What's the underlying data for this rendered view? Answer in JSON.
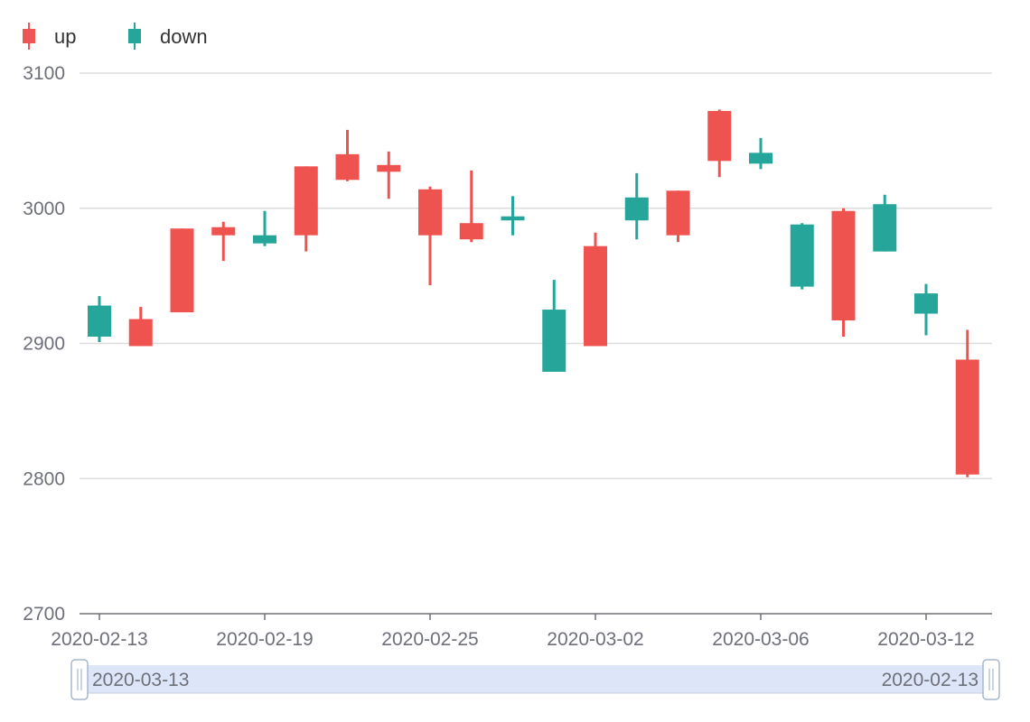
{
  "chart_data": {
    "type": "candlestick",
    "legend": [
      {
        "name": "up",
        "color": "#ee5555"
      },
      {
        "name": "down",
        "color": "#26a69a"
      }
    ],
    "colors": {
      "up": "#ef5350",
      "down": "#26a69a",
      "grid": "#dddddd",
      "axis": "#6e7079"
    },
    "ylim": [
      2700,
      3100
    ],
    "yticks": [
      2700,
      2800,
      2900,
      3000,
      3100
    ],
    "xtick_labels": [
      "2020-02-13",
      "2020-02-19",
      "2020-02-25",
      "2020-03-02",
      "2020-03-06",
      "2020-03-12"
    ],
    "xtick_indices": [
      0,
      4,
      8,
      12,
      16,
      20
    ],
    "candles": [
      {
        "date": "2020-02-13",
        "open": 2928,
        "close": 2905,
        "low": 2901,
        "high": 2935
      },
      {
        "date": "2020-02-14",
        "open": 2898,
        "close": 2918,
        "low": 2898,
        "high": 2927
      },
      {
        "date": "2020-02-17",
        "open": 2923,
        "close": 2985,
        "low": 2923,
        "high": 2985
      },
      {
        "date": "2020-02-18",
        "open": 2980,
        "close": 2986,
        "low": 2961,
        "high": 2990
      },
      {
        "date": "2020-02-19",
        "open": 2980,
        "close": 2974,
        "low": 2972,
        "high": 2998
      },
      {
        "date": "2020-02-20",
        "open": 2980,
        "close": 3031,
        "low": 2968,
        "high": 3031
      },
      {
        "date": "2020-02-21",
        "open": 3021,
        "close": 3040,
        "low": 3020,
        "high": 3058
      },
      {
        "date": "2020-02-24",
        "open": 3027,
        "close": 3032,
        "low": 3007,
        "high": 3042
      },
      {
        "date": "2020-02-25",
        "open": 2980,
        "close": 3014,
        "low": 2943,
        "high": 3016
      },
      {
        "date": "2020-02-26",
        "open": 2977,
        "close": 2989,
        "low": 2975,
        "high": 3028
      },
      {
        "date": "2020-02-27",
        "open": 2994,
        "close": 2991,
        "low": 2980,
        "high": 3009
      },
      {
        "date": "2020-02-28",
        "open": 2925,
        "close": 2879,
        "low": 2879,
        "high": 2947
      },
      {
        "date": "2020-03-02",
        "open": 2898,
        "close": 2972,
        "low": 2898,
        "high": 2982
      },
      {
        "date": "2020-03-03",
        "open": 3008,
        "close": 2991,
        "low": 2977,
        "high": 3026
      },
      {
        "date": "2020-03-04",
        "open": 2980,
        "close": 3013,
        "low": 2975,
        "high": 3013
      },
      {
        "date": "2020-03-05",
        "open": 3035,
        "close": 3072,
        "low": 3023,
        "high": 3073
      },
      {
        "date": "2020-03-06",
        "open": 3041,
        "close": 3033,
        "low": 3029,
        "high": 3052
      },
      {
        "date": "2020-03-09",
        "open": 2988,
        "close": 2942,
        "low": 2940,
        "high": 2989
      },
      {
        "date": "2020-03-10",
        "open": 2917,
        "close": 2998,
        "low": 2905,
        "high": 3000
      },
      {
        "date": "2020-03-11",
        "open": 3003,
        "close": 2968,
        "low": 2968,
        "high": 3010
      },
      {
        "date": "2020-03-12",
        "open": 2937,
        "close": 2922,
        "low": 2906,
        "high": 2944
      },
      {
        "date": "2020-03-13",
        "open": 2803,
        "close": 2888,
        "low": 2801,
        "high": 2910
      }
    ],
    "datazoom": {
      "left_label": "2020-03-13",
      "right_label": "2020-02-13"
    }
  }
}
